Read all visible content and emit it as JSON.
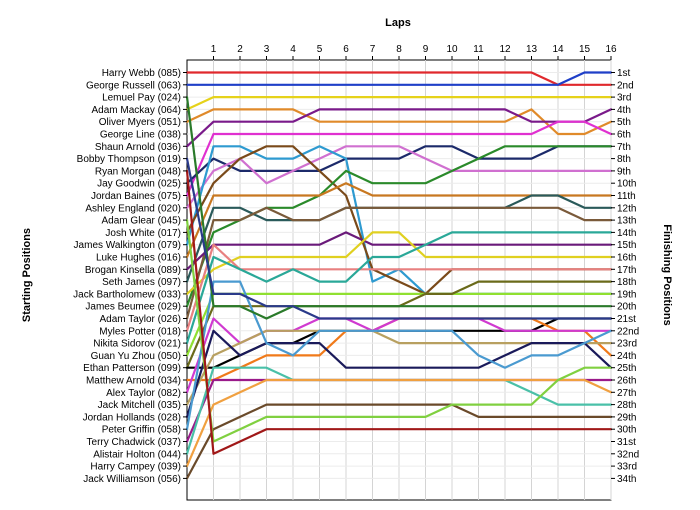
{
  "chart_data": {
    "type": "line",
    "title": "",
    "xlabel": "Laps",
    "ylabel_left": "Starting Positions",
    "ylabel_right": "Finishing Positions",
    "laps": [
      1,
      2,
      3,
      4,
      5,
      6,
      7,
      8,
      9,
      10,
      11,
      12,
      13,
      14,
      15,
      16
    ],
    "xlim": [
      0,
      16
    ],
    "positions": 34,
    "grid": true,
    "drivers": [
      "Harry Webb (085)",
      "George Russell (063)",
      "Lemuel Pay (024)",
      "Adam Mackay (064)",
      "Oliver Myers (051)",
      "George Line (038)",
      "Shaun Arnold (036)",
      "Bobby Thompson (019)",
      "Ryan Morgan (048)",
      "Jay Goodwin (025)",
      "Jordan Baines (075)",
      "Ashley England (020)",
      "Adam Glear (045)",
      "Josh White (017)",
      "James Walkington (079)",
      "Luke Hughes (016)",
      "Brogan Kinsella (089)",
      "Seth James (097)",
      "Jack Bartholomew (033)",
      "James Beumee (029)",
      "Adam Taylor (026)",
      "Myles Potter (018)",
      "Nikita Sidorov (021)",
      "Guan Yu Zhou (050)",
      "Ethan Patterson (099)",
      "Matthew Arnold (034)",
      "Alex Taylor (082)",
      "Jack Mitchell (035)",
      "Jordan Hollands (028)",
      "Peter Griffin (058)",
      "Terry Chadwick (037)",
      "Alistair Holton (044)",
      "Harry Campey (039)",
      "Jack Williamson (056)"
    ],
    "finish_labels": [
      "1st",
      "2nd",
      "3rd",
      "4th",
      "5th",
      "6th",
      "7th",
      "8th",
      "9th",
      "10th",
      "11th",
      "12th",
      "13th",
      "14th",
      "15th",
      "16th",
      "17th",
      "18th",
      "19th",
      "20th",
      "21st",
      "22nd",
      "23rd",
      "24th",
      "25th",
      "26th",
      "27th",
      "28th",
      "29th",
      "30th",
      "31st",
      "32nd",
      "33rd",
      "34th"
    ],
    "series": [
      {
        "color": "#e0282c",
        "values": [
          1,
          1,
          1,
          1,
          1,
          1,
          1,
          1,
          1,
          1,
          1,
          1,
          1,
          1,
          2,
          2,
          2
        ]
      },
      {
        "color": "#1f3fc8",
        "values": [
          2,
          2,
          2,
          2,
          2,
          2,
          2,
          2,
          2,
          2,
          2,
          2,
          2,
          2,
          2,
          1,
          1
        ]
      },
      {
        "color": "#e6d21a",
        "values": [
          4,
          3,
          3,
          3,
          3,
          3,
          3,
          3,
          3,
          3,
          3,
          3,
          3,
          3,
          3,
          3,
          3
        ]
      },
      {
        "color": "#e08a2a",
        "values": [
          5,
          4,
          4,
          4,
          4,
          5,
          5,
          5,
          5,
          5,
          5,
          5,
          5,
          4,
          6,
          6,
          5
        ]
      },
      {
        "color": "#7a1a8a",
        "values": [
          7,
          5,
          5,
          5,
          5,
          4,
          4,
          4,
          4,
          4,
          4,
          4,
          4,
          5,
          5,
          5,
          4
        ]
      },
      {
        "color": "#e030d0",
        "values": [
          11,
          6,
          6,
          6,
          6,
          6,
          6,
          6,
          6,
          6,
          6,
          6,
          6,
          6,
          5,
          5,
          6
        ]
      },
      {
        "color": "#1c2a6a",
        "values": [
          10,
          8,
          9,
          9,
          9,
          9,
          8,
          8,
          8,
          7,
          7,
          8,
          8,
          8,
          7,
          7,
          7
        ]
      },
      {
        "color": "#d070d0",
        "values": [
          12,
          9,
          8,
          10,
          9,
          8,
          7,
          7,
          7,
          8,
          9,
          9,
          9,
          9,
          9,
          9,
          9
        ]
      },
      {
        "color": "#2e9ad0",
        "values": [
          15,
          7,
          7,
          8,
          8,
          7,
          8,
          18,
          17,
          19,
          19,
          19,
          19,
          19,
          19,
          19,
          19
        ]
      },
      {
        "color": "#7a4a1a",
        "values": [
          14,
          10,
          8,
          7,
          7,
          9,
          11,
          17,
          18,
          19,
          17,
          17,
          17,
          17,
          17,
          17,
          17
        ]
      },
      {
        "color": "#2a8a2a",
        "values": [
          20,
          14,
          13,
          12,
          12,
          11,
          9,
          10,
          10,
          10,
          9,
          8,
          7,
          7,
          7,
          7,
          7
        ]
      },
      {
        "color": "#c87820",
        "values": [
          16,
          11,
          11,
          11,
          11,
          11,
          10,
          11,
          11,
          11,
          11,
          11,
          11,
          11,
          11,
          11,
          11
        ]
      },
      {
        "color": "#2a5a5a",
        "values": [
          18,
          12,
          12,
          13,
          13,
          13,
          12,
          12,
          12,
          12,
          12,
          12,
          12,
          11,
          11,
          12,
          12
        ]
      },
      {
        "color": "#7a5a3a",
        "values": [
          21,
          13,
          13,
          12,
          13,
          13,
          12,
          12,
          12,
          12,
          12,
          12,
          12,
          12,
          12,
          13,
          13
        ]
      },
      {
        "color": "#6a1a7a",
        "values": [
          17,
          15,
          15,
          15,
          15,
          15,
          14,
          15,
          15,
          15,
          15,
          15,
          15,
          15,
          15,
          15,
          15
        ]
      },
      {
        "color": "#e0d020",
        "values": [
          19,
          17,
          16,
          16,
          16,
          16,
          16,
          14,
          14,
          16,
          16,
          16,
          16,
          16,
          16,
          16,
          16
        ]
      },
      {
        "color": "#e88080",
        "values": [
          22,
          15,
          17,
          17,
          17,
          17,
          17,
          17,
          17,
          17,
          17,
          17,
          17,
          17,
          17,
          17,
          17
        ]
      },
      {
        "color": "#2aa898",
        "values": [
          23,
          16,
          17,
          18,
          17,
          18,
          18,
          16,
          16,
          15,
          14,
          14,
          14,
          14,
          14,
          14,
          14
        ]
      },
      {
        "color": "#90e030",
        "values": [
          24,
          19,
          19,
          19,
          19,
          19,
          19,
          19,
          19,
          19,
          19,
          19,
          19,
          19,
          19,
          19,
          19
        ]
      },
      {
        "color": "#6a6a1a",
        "values": [
          25,
          20,
          20,
          20,
          20,
          20,
          20,
          20,
          20,
          19,
          19,
          18,
          18,
          18,
          18,
          18,
          18
        ]
      },
      {
        "color": "#000000",
        "values": [
          25,
          25,
          24,
          23,
          23,
          22,
          22,
          22,
          22,
          22,
          22,
          22,
          22,
          22,
          21,
          21,
          21
        ]
      },
      {
        "color": "#f07a1a",
        "values": [
          26,
          26,
          25,
          24,
          24,
          24,
          22,
          22,
          21,
          21,
          21,
          21,
          21,
          21,
          22,
          22,
          24
        ]
      },
      {
        "color": "#d03ad0",
        "values": [
          27,
          21,
          23,
          22,
          22,
          21,
          21,
          22,
          21,
          21,
          21,
          21,
          22,
          22,
          22,
          22,
          22
        ]
      },
      {
        "color": "#b8a060",
        "values": [
          28,
          24,
          23,
          22,
          22,
          22,
          22,
          22,
          23,
          23,
          23,
          23,
          23,
          23,
          23,
          23,
          23
        ]
      },
      {
        "color": "#1a1a5a",
        "values": [
          29,
          22,
          24,
          23,
          23,
          23,
          25,
          25,
          25,
          25,
          25,
          25,
          24,
          23,
          23,
          23,
          25
        ]
      },
      {
        "color": "#4a9ad0",
        "values": [
          30,
          18,
          18,
          23,
          24,
          22,
          22,
          22,
          22,
          22,
          22,
          24,
          25,
          24,
          24,
          23,
          22
        ]
      },
      {
        "color": "#9a1a8a",
        "values": [
          31,
          26,
          26,
          26,
          26,
          26,
          26,
          26,
          26,
          26,
          26,
          26,
          26,
          26,
          26,
          26,
          26
        ]
      },
      {
        "color": "#4ac0a8",
        "values": [
          32,
          25,
          25,
          25,
          26,
          26,
          26,
          26,
          26,
          26,
          26,
          26,
          26,
          27,
          28,
          28,
          28
        ]
      },
      {
        "color": "#f0a040",
        "values": [
          33,
          28,
          27,
          26,
          26,
          26,
          26,
          26,
          26,
          26,
          26,
          26,
          26,
          26,
          26,
          26,
          27
        ]
      },
      {
        "color": "#6a4a2a",
        "values": [
          34,
          30,
          29,
          28,
          28,
          28,
          28,
          28,
          28,
          28,
          28,
          29,
          29,
          29,
          29,
          29,
          29
        ]
      },
      {
        "color": "#80d040",
        "values": [
          13,
          31,
          30,
          29,
          29,
          29,
          29,
          29,
          29,
          29,
          28,
          28,
          28,
          28,
          26,
          25,
          25
        ]
      },
      {
        "color": "#a01818",
        "values": [
          9,
          32,
          31,
          30,
          30,
          30,
          30,
          30,
          30,
          30,
          30,
          30,
          30,
          30,
          30,
          30,
          30
        ]
      },
      {
        "color": "#2a7a2a",
        "values": [
          3,
          20,
          20,
          21,
          20,
          20,
          20,
          20,
          20,
          20,
          20,
          20,
          20,
          20,
          20,
          20,
          20
        ]
      },
      {
        "color": "#2a3a8a",
        "values": [
          8,
          19,
          19,
          20,
          20,
          21,
          21,
          21,
          21,
          21,
          21,
          21,
          21,
          21,
          21,
          21,
          21
        ]
      }
    ]
  }
}
